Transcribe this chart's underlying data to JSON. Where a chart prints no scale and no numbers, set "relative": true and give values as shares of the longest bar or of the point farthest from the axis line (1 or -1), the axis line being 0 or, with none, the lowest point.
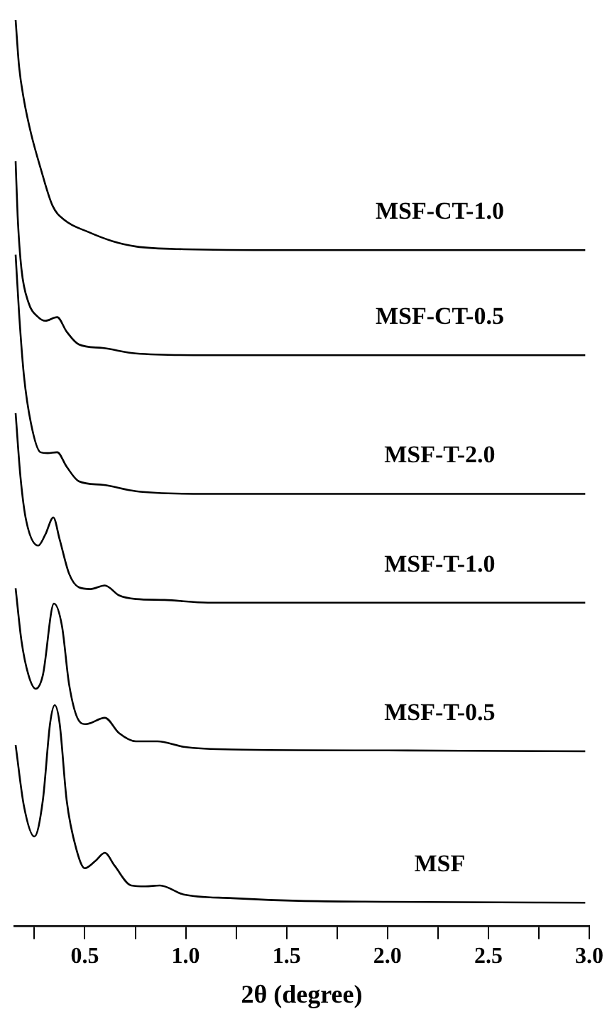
{
  "chart_data": {
    "type": "line",
    "relative": true,
    "xlabel": "2θ (degree)",
    "xlim": [
      0.15,
      3.0
    ],
    "xticks": [
      {
        "value": 0.25,
        "label": null
      },
      0.5,
      {
        "value": 0.75,
        "label": null
      },
      {
        "value": 1,
        "label": "1.0"
      },
      {
        "value": 1.25,
        "label": null
      },
      1.5,
      {
        "value": 1.75,
        "label": null
      },
      {
        "value": 2,
        "label": "2.0"
      },
      {
        "value": 2.25,
        "label": null
      },
      2.5,
      {
        "value": 2.75,
        "label": null
      },
      {
        "value": 3,
        "label": "3.0"
      }
    ],
    "grid": false,
    "legend": false,
    "marker": "none",
    "line_style": "solid",
    "series": [
      {
        "name": "MSF-CT-1.0",
        "color": "#000000",
        "x": [
          0.157,
          0.174,
          0.198,
          0.233,
          0.28,
          0.34,
          0.4,
          0.517,
          0.635,
          0.753,
          0.99,
          1.5,
          2.0,
          2.98
        ],
        "values": [
          1.0,
          0.949,
          0.912,
          0.875,
          0.837,
          0.795,
          0.779,
          0.766,
          0.756,
          0.75,
          0.747,
          0.746,
          0.746,
          0.746
        ]
      },
      {
        "name": "MSF-CT-0.5",
        "color": "#000000",
        "x": [
          0.157,
          0.167,
          0.186,
          0.221,
          0.269,
          0.304,
          0.363,
          0.41,
          0.47,
          0.588,
          0.753,
          1.11,
          2.0,
          2.98
        ],
        "values": [
          0.844,
          0.784,
          0.725,
          0.688,
          0.672,
          0.668,
          0.672,
          0.656,
          0.642,
          0.638,
          0.632,
          0.63,
          0.63,
          0.63
        ]
      },
      {
        "name": "MSF-T-2.0",
        "color": "#000000",
        "x": [
          0.157,
          0.174,
          0.198,
          0.233,
          0.28,
          0.316,
          0.363,
          0.41,
          0.47,
          0.588,
          0.753,
          1.11,
          2.0,
          2.98
        ],
        "values": [
          0.741,
          0.677,
          0.608,
          0.555,
          0.523,
          0.522,
          0.523,
          0.507,
          0.491,
          0.487,
          0.48,
          0.477,
          0.477,
          0.477
        ]
      },
      {
        "name": "MSF-T-1.0",
        "color": "#000000",
        "x": [
          0.157,
          0.181,
          0.209,
          0.269,
          0.304,
          0.344,
          0.375,
          0.422,
          0.47,
          0.528,
          0.599,
          0.67,
          0.753,
          0.895,
          1.11,
          2.0,
          2.98
        ],
        "values": [
          0.566,
          0.496,
          0.448,
          0.42,
          0.432,
          0.451,
          0.427,
          0.389,
          0.374,
          0.372,
          0.376,
          0.365,
          0.361,
          0.36,
          0.357,
          0.357,
          0.357
        ]
      },
      {
        "name": "MSF-T-0.5",
        "color": "#000000",
        "x": [
          0.157,
          0.186,
          0.221,
          0.257,
          0.292,
          0.347,
          0.387,
          0.422,
          0.47,
          0.505,
          0.599,
          0.67,
          0.753,
          0.86,
          0.99,
          1.23,
          2.0,
          2.98
        ],
        "values": [
          0.373,
          0.315,
          0.277,
          0.262,
          0.277,
          0.356,
          0.331,
          0.267,
          0.227,
          0.223,
          0.23,
          0.213,
          0.204,
          0.204,
          0.198,
          0.195,
          0.194,
          0.193
        ]
      },
      {
        "name": "MSF",
        "color": "#000000",
        "x": [
          0.157,
          0.198,
          0.25,
          0.292,
          0.328,
          0.351,
          0.375,
          0.41,
          0.458,
          0.5,
          0.552,
          0.599,
          0.647,
          0.73,
          0.8,
          0.872,
          0.99,
          1.23,
          1.56,
          2.0,
          2.98
        ],
        "values": [
          0.2,
          0.133,
          0.099,
          0.139,
          0.224,
          0.244,
          0.224,
          0.139,
          0.085,
          0.064,
          0.072,
          0.081,
          0.067,
          0.045,
          0.044,
          0.045,
          0.035,
          0.031,
          0.028,
          0.027,
          0.026
        ]
      }
    ]
  }
}
